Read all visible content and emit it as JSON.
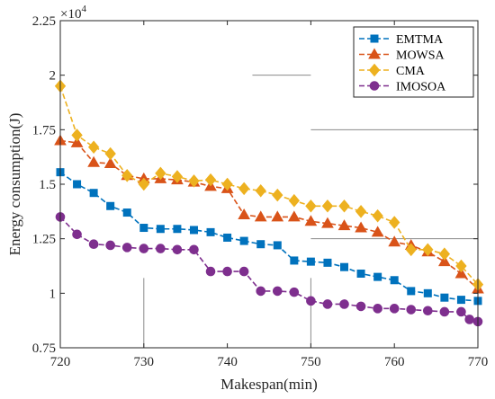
{
  "chart_data": {
    "type": "line",
    "xlabel": "Makespan(min)",
    "ylabel": "Energy consumption(J)",
    "y_multiplier_label": "×10",
    "y_multiplier_exponent": "4",
    "xlim": [
      720,
      770
    ],
    "ylim": [
      0.75,
      2.25
    ],
    "xticks": [
      720,
      730,
      740,
      750,
      760,
      770
    ],
    "xtick_labels": [
      "720",
      "730",
      "740",
      "750",
      "760",
      "770"
    ],
    "yticks": [
      0.75,
      1,
      1.25,
      1.5,
      1.75,
      2,
      2.25
    ],
    "ytick_labels": [
      "0.75",
      "1",
      "1.25",
      "1.5",
      "1.75",
      "2",
      "2.25"
    ],
    "legend_position": "top-right",
    "grid": false,
    "series": [
      {
        "name": "EMTMA",
        "color": "#0072BD",
        "marker": "square",
        "x": [
          720,
          722,
          724,
          726,
          728,
          730,
          732,
          734,
          736,
          738,
          740,
          742,
          744,
          746,
          748,
          750,
          752,
          754,
          756,
          758,
          760,
          762,
          764,
          766,
          768,
          770
        ],
        "y": [
          1.555,
          1.5,
          1.46,
          1.4,
          1.37,
          1.3,
          1.295,
          1.295,
          1.29,
          1.28,
          1.255,
          1.24,
          1.225,
          1.22,
          1.15,
          1.145,
          1.14,
          1.12,
          1.09,
          1.075,
          1.06,
          1.01,
          1.0,
          0.98,
          0.97,
          0.965
        ]
      },
      {
        "name": "MOWSA",
        "color": "#D95319",
        "marker": "triangle",
        "x": [
          720,
          722,
          724,
          726,
          728,
          730,
          732,
          734,
          736,
          738,
          740,
          742,
          744,
          746,
          748,
          750,
          752,
          754,
          756,
          758,
          760,
          762,
          764,
          766,
          768,
          770
        ],
        "y": [
          1.7,
          1.69,
          1.6,
          1.595,
          1.54,
          1.525,
          1.525,
          1.52,
          1.51,
          1.49,
          1.48,
          1.36,
          1.35,
          1.35,
          1.35,
          1.33,
          1.32,
          1.31,
          1.3,
          1.28,
          1.235,
          1.22,
          1.19,
          1.145,
          1.09,
          1.02
        ]
      },
      {
        "name": "CMA",
        "color": "#EDB120",
        "marker": "diamond",
        "x": [
          720,
          722,
          724,
          726,
          728,
          730,
          732,
          734,
          736,
          738,
          740,
          742,
          744,
          746,
          748,
          750,
          752,
          754,
          756,
          758,
          760,
          762,
          764,
          766,
          768,
          770
        ],
        "y": [
          1.95,
          1.725,
          1.67,
          1.64,
          1.54,
          1.5,
          1.55,
          1.535,
          1.515,
          1.52,
          1.5,
          1.48,
          1.47,
          1.45,
          1.425,
          1.4,
          1.4,
          1.4,
          1.375,
          1.355,
          1.325,
          1.2,
          1.2,
          1.18,
          1.125,
          1.04
        ]
      },
      {
        "name": "IMOSOA",
        "color": "#7E2F8E",
        "marker": "circle",
        "x": [
          720,
          722,
          724,
          726,
          728,
          730,
          732,
          734,
          736,
          738,
          740,
          742,
          744,
          746,
          748,
          750,
          752,
          754,
          756,
          758,
          760,
          762,
          764,
          766,
          768,
          769,
          770
        ],
        "y": [
          1.35,
          1.27,
          1.225,
          1.22,
          1.21,
          1.205,
          1.205,
          1.2,
          1.2,
          1.1,
          1.1,
          1.1,
          1.01,
          1.01,
          1.005,
          0.965,
          0.95,
          0.95,
          0.94,
          0.93,
          0.93,
          0.925,
          0.92,
          0.915,
          0.915,
          0.88,
          0.87
        ]
      }
    ]
  }
}
